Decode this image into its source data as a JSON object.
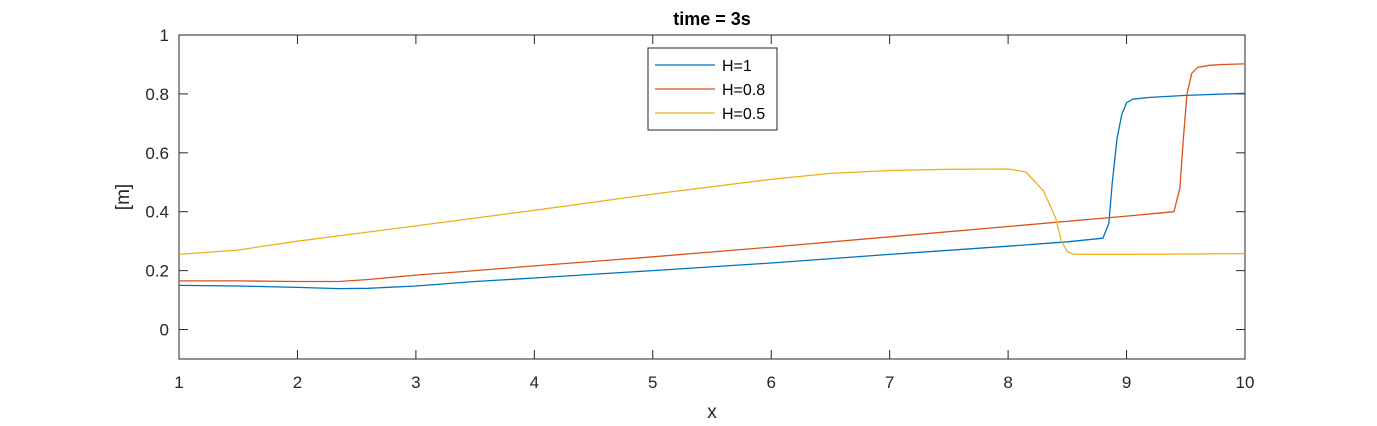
{
  "chart_data": {
    "type": "line",
    "title": "time = 3s",
    "xlabel": "x",
    "ylabel": "[m]",
    "xlim": [
      1,
      10
    ],
    "ylim": [
      -0.1,
      1
    ],
    "xticks": [
      1,
      2,
      3,
      4,
      5,
      6,
      7,
      8,
      9,
      10
    ],
    "yticks": [
      0,
      0.2,
      0.4,
      0.6,
      0.8,
      1
    ],
    "ytick_labels": [
      "0",
      "0.2",
      "0.4",
      "0.6",
      "0.8",
      "1"
    ],
    "grid": false,
    "legend_position": "top-center",
    "series": [
      {
        "name": "H=1",
        "color": "#0072BD",
        "x": [
          1,
          1.5,
          2,
          2.35,
          2.6,
          3,
          3.5,
          4,
          5,
          6,
          7,
          8,
          8.5,
          8.8,
          8.85,
          8.88,
          8.92,
          8.96,
          9,
          9.05,
          9.2,
          9.5,
          10
        ],
        "y": [
          0.15,
          0.148,
          0.143,
          0.139,
          0.14,
          0.148,
          0.163,
          0.175,
          0.2,
          0.226,
          0.255,
          0.283,
          0.298,
          0.31,
          0.36,
          0.5,
          0.65,
          0.73,
          0.77,
          0.782,
          0.788,
          0.795,
          0.802
        ]
      },
      {
        "name": "H=0.8",
        "color": "#D95319",
        "x": [
          1,
          1.5,
          2,
          2.35,
          2.6,
          3,
          3.5,
          4,
          5,
          6,
          7,
          8,
          9,
          9.4,
          9.45,
          9.48,
          9.51,
          9.55,
          9.6,
          9.7,
          9.8,
          10
        ],
        "y": [
          0.165,
          0.165,
          0.163,
          0.163,
          0.17,
          0.185,
          0.2,
          0.216,
          0.247,
          0.28,
          0.315,
          0.35,
          0.385,
          0.4,
          0.48,
          0.65,
          0.8,
          0.87,
          0.89,
          0.897,
          0.9,
          0.902
        ]
      },
      {
        "name": "H=0.5",
        "color": "#EDB120",
        "x": [
          1,
          1.5,
          2,
          3,
          4,
          5,
          6,
          6.5,
          7,
          7.5,
          8,
          8.15,
          8.3,
          8.4,
          8.45,
          8.5,
          8.55,
          8.6,
          9,
          10
        ],
        "y": [
          0.255,
          0.27,
          0.3,
          0.352,
          0.405,
          0.46,
          0.51,
          0.53,
          0.54,
          0.544,
          0.545,
          0.535,
          0.47,
          0.38,
          0.3,
          0.265,
          0.256,
          0.255,
          0.255,
          0.258
        ]
      }
    ]
  }
}
